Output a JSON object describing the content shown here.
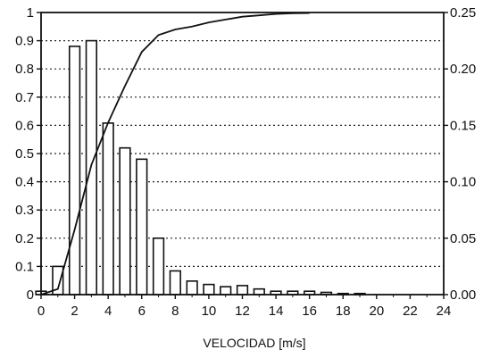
{
  "chart_data": {
    "type": "bar",
    "xlabel": "VELOCIDAD [m/s]",
    "ylabel": "",
    "y2label": "",
    "xlim": [
      0,
      24
    ],
    "ylim": [
      0,
      1
    ],
    "y2lim": [
      0,
      0.25
    ],
    "x_ticks": [
      0,
      2,
      4,
      6,
      8,
      10,
      12,
      14,
      16,
      18,
      20,
      22,
      24
    ],
    "y_ticks": [
      0,
      0.1,
      0.2,
      0.3,
      0.4,
      0.5,
      0.6,
      0.7,
      0.8,
      0.9,
      1
    ],
    "y2_ticks": [
      0.0,
      0.05,
      0.1,
      0.15,
      0.2,
      0.25
    ],
    "y2_tick_labels": [
      "0.00",
      "0.05",
      "0.10",
      "0.15",
      "0.20",
      "0.25"
    ],
    "grid": "horizontal dotted",
    "series": [
      {
        "kind": "bar",
        "axis": "right",
        "x": [
          0,
          1,
          2,
          3,
          4,
          5,
          6,
          7,
          8,
          9,
          10,
          11,
          12,
          13,
          14,
          15,
          16,
          17,
          18,
          19,
          20
        ],
        "values": [
          0.003,
          0.025,
          0.22,
          0.225,
          0.152,
          0.13,
          0.12,
          0.05,
          0.021,
          0.012,
          0.009,
          0.007,
          0.008,
          0.005,
          0.003,
          0.003,
          0.003,
          0.002,
          0.001,
          0.001,
          0.0
        ]
      },
      {
        "kind": "line",
        "axis": "left",
        "x": [
          0,
          1,
          2,
          3,
          4,
          5,
          6,
          7,
          8,
          9,
          10,
          11,
          12,
          13,
          14,
          15,
          16
        ],
        "values": [
          0.0,
          0.02,
          0.23,
          0.46,
          0.61,
          0.74,
          0.86,
          0.92,
          0.94,
          0.95,
          0.965,
          0.975,
          0.985,
          0.99,
          0.995,
          0.997,
          0.998
        ]
      }
    ]
  }
}
